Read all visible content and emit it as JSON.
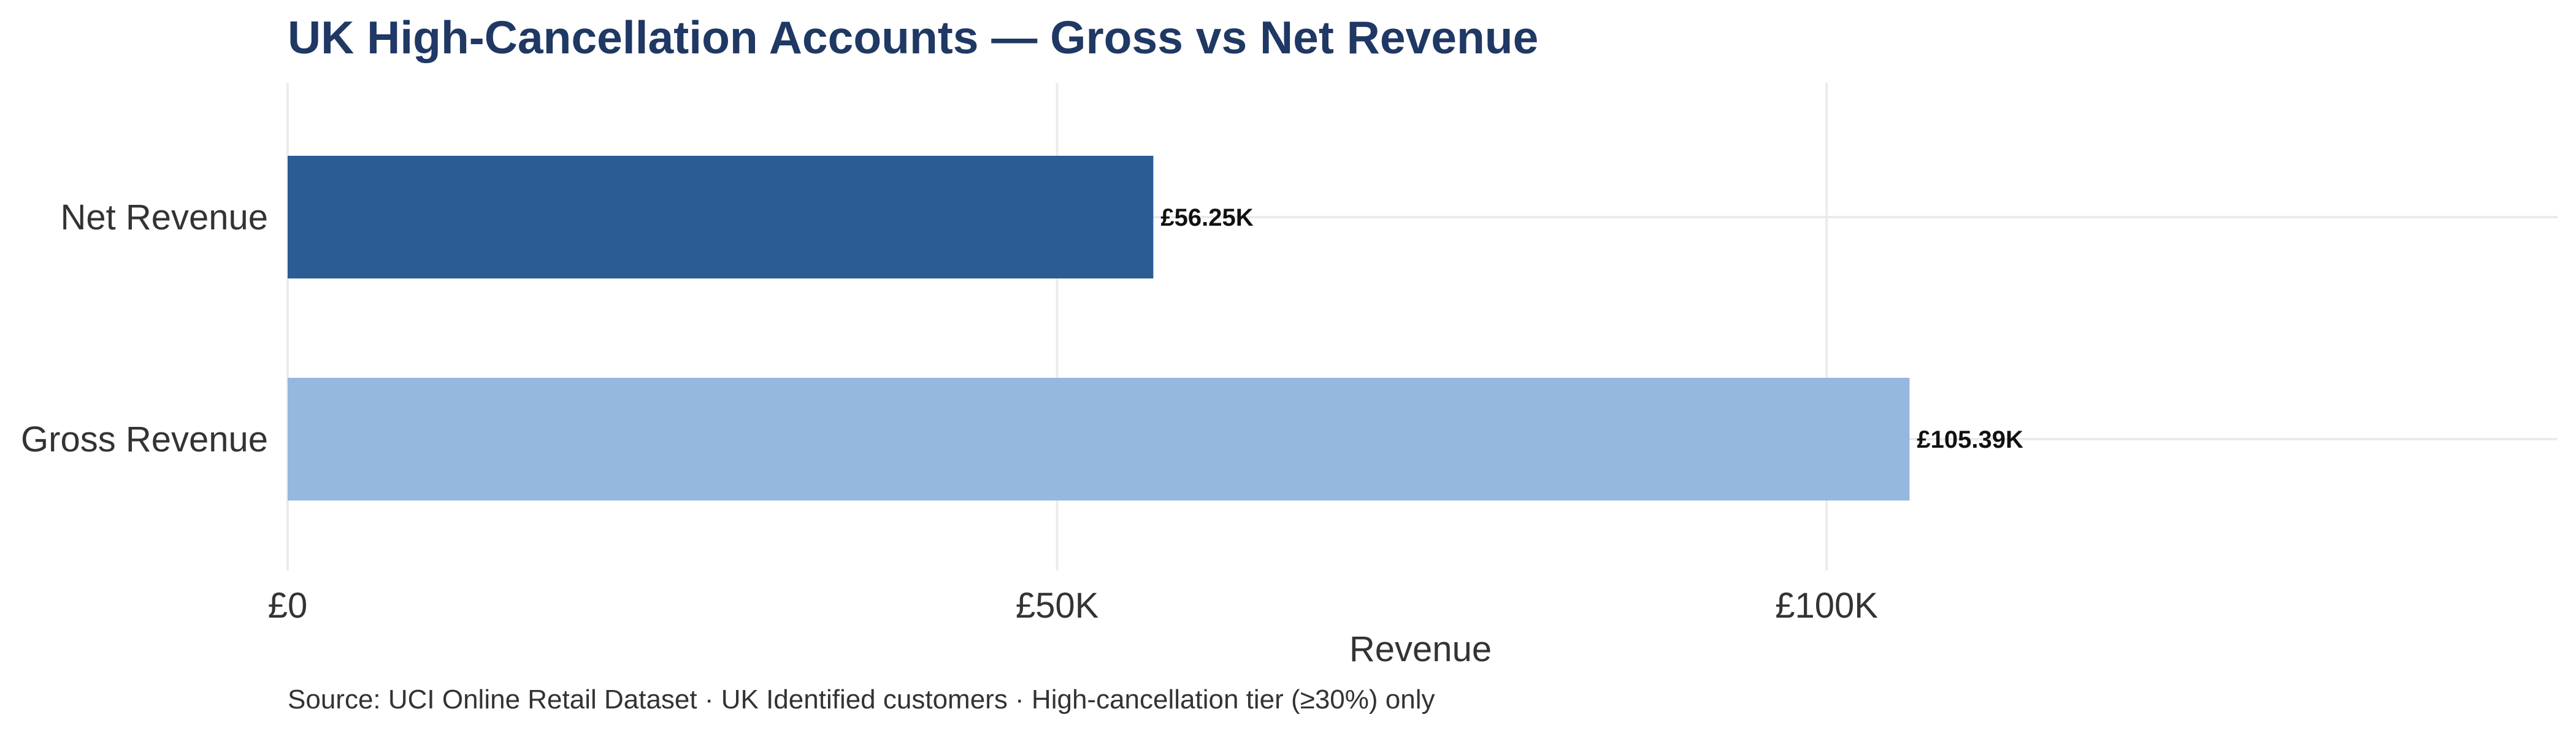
{
  "chart_data": {
    "type": "bar",
    "orientation": "horizontal",
    "title": "UK High-Cancellation Accounts — Gross vs Net Revenue",
    "caption": "Source: UCI Online Retail Dataset · UK Identified customers · High-cancellation tier (≥30%) only",
    "xlabel": "Revenue",
    "ylabel": "",
    "categories": [
      "Net Revenue",
      "Gross Revenue"
    ],
    "values": [
      56250,
      105390
    ],
    "value_labels": [
      "£56.25K",
      "£105.39K"
    ],
    "colors": [
      "#2b5c94",
      "#94b8de"
    ],
    "xlim": [
      0,
      147500
    ],
    "x_ticks": [
      0,
      50000,
      100000
    ],
    "x_tick_labels": [
      "£0",
      "£50K",
      "£100K"
    ],
    "grid": true,
    "legend": "none"
  }
}
